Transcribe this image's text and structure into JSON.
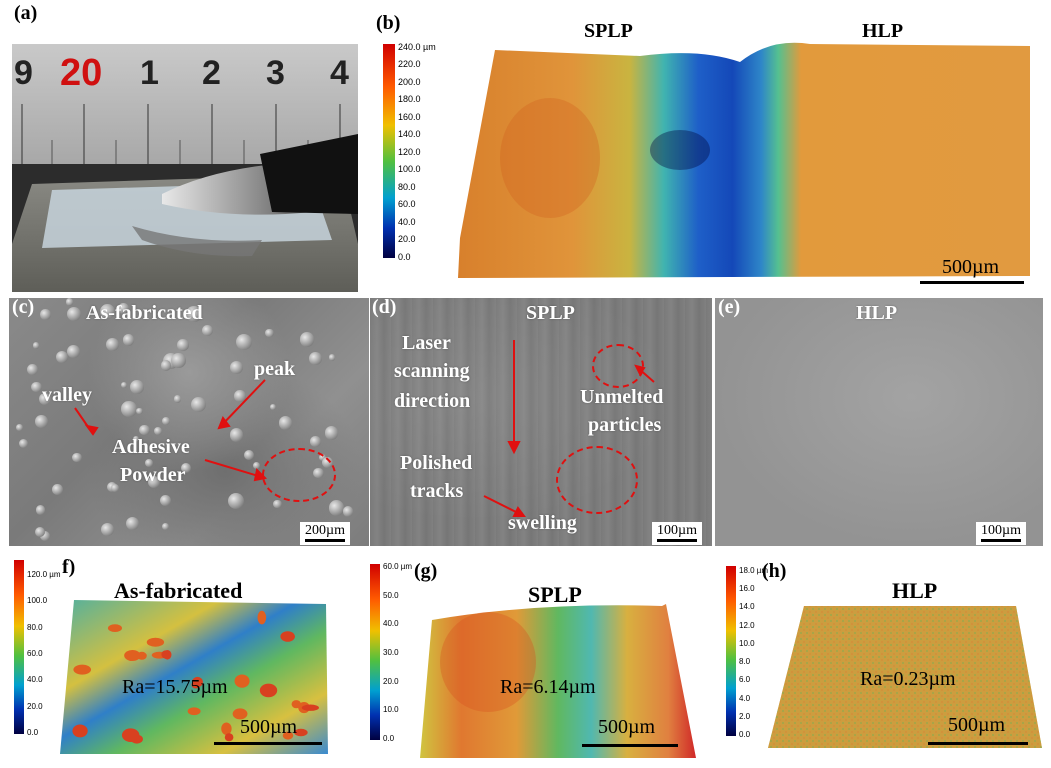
{
  "panel_a": {
    "label": "(a)",
    "ruler_numbers": [
      "9",
      "20",
      "1",
      "2",
      "3",
      "4"
    ]
  },
  "panel_b": {
    "label": "(b)",
    "title_left": "SPLP",
    "title_right": "HLP",
    "colorbar_ticks": [
      "240.0 µm",
      "220.0",
      "200.0",
      "180.0",
      "160.0",
      "140.0",
      "120.0",
      "100.0",
      "80.0",
      "60.0",
      "40.0",
      "20.0",
      "0.0"
    ],
    "scale": "500µm"
  },
  "panel_c": {
    "label": "(c)",
    "title": "As-fabricated",
    "valley": "valley",
    "peak": "peak",
    "adhesive_line1": "Adhesive",
    "adhesive_line2": "Powder",
    "scale": "200µm"
  },
  "panel_d": {
    "label": "(d)",
    "title": "SPLP",
    "laser1": "Laser",
    "laser2": "scanning",
    "laser3": "direction",
    "unmelted1": "Unmelted",
    "unmelted2": "particles",
    "polished1": "Polished",
    "polished2": "tracks",
    "swelling": "swelling",
    "scale": "100µm"
  },
  "panel_e": {
    "label": "(e)",
    "title": "HLP",
    "scale": "100µm"
  },
  "panel_f": {
    "label": "f)",
    "title": "As-fabricated",
    "ra": "Ra=15.75µm",
    "scale": "500µm",
    "colorbar_ticks": [
      "120.0 µm",
      "100.0",
      "80.0",
      "60.0",
      "40.0",
      "20.0",
      "0.0"
    ]
  },
  "panel_g": {
    "label": "(g)",
    "title": "SPLP",
    "ra": "Ra=6.14µm",
    "scale": "500µm",
    "colorbar_ticks": [
      "60.0 µm",
      "50.0",
      "40.0",
      "30.0",
      "20.0",
      "10.0",
      "0.0"
    ]
  },
  "panel_h": {
    "label": "(h)",
    "title": "HLP",
    "ra": "Ra=0.23µm",
    "scale": "500µm",
    "colorbar_ticks": [
      "18.0 µm",
      "16.0",
      "14.0",
      "12.0",
      "10.0",
      "8.0",
      "6.0",
      "4.0",
      "2.0",
      "0.0"
    ]
  },
  "colors": {
    "annotation_red": "#e01010",
    "rainbow": [
      "#d00000",
      "#e06000",
      "#f0c000",
      "#60c030",
      "#00a0c0",
      "#0040c0",
      "#000060"
    ]
  }
}
